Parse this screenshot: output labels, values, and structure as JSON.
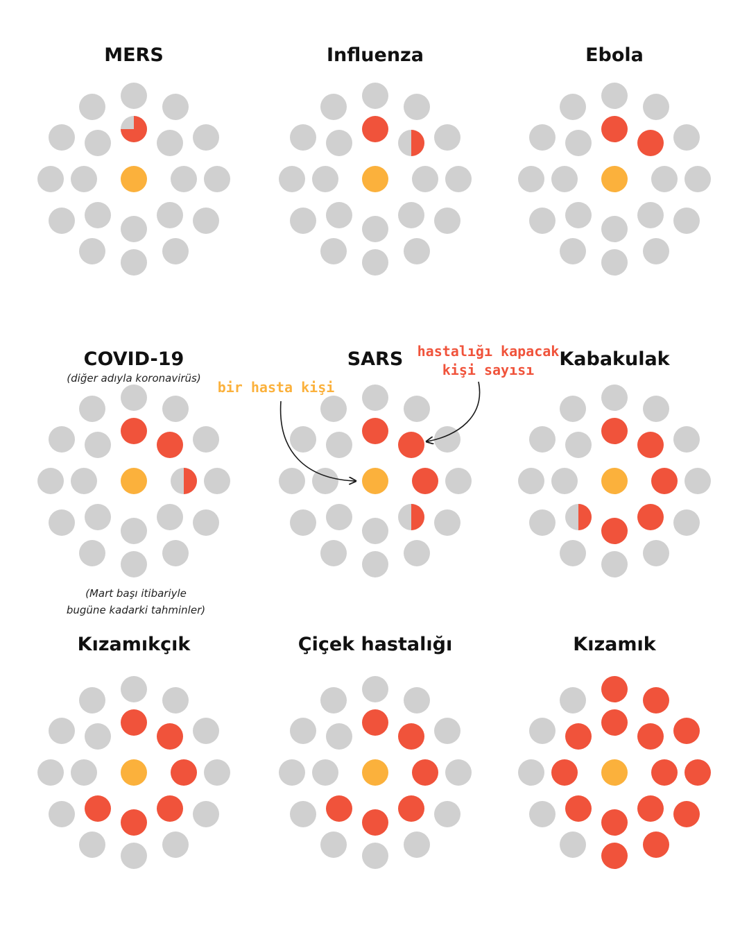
{
  "colors": {
    "grey": "#d0d0d0",
    "red": "#f0533b",
    "yellow": "#fbb13c",
    "label_yellow": "#fbb13c",
    "label_red": "#f0533b",
    "arrow": "#1a1a1a"
  },
  "panels": [
    {
      "title": "MERS",
      "red_count": 0.75
    },
    {
      "title": "Influenza",
      "red_count": 1.5
    },
    {
      "title": "Ebola",
      "red_count": 2
    },
    {
      "title": "COVID-19",
      "subtitle": "(diğer adıyla koronavirüs)",
      "red_count": 2.5,
      "note_lines": [
        "(Mart başı itibariyle",
        "bugüne kadarki tahminler)"
      ]
    },
    {
      "title": "SARS",
      "red_count": 3.5
    },
    {
      "title": "Kabakulak",
      "red_count": 5.5
    },
    {
      "title": "Kızamıkçık",
      "red_count": 6
    },
    {
      "title": "Çiçek hastalığı",
      "red_count": 6
    },
    {
      "title": "Kızamık",
      "red_count": 15
    }
  ],
  "annotations": {
    "sick_person": "bir hasta kişi",
    "will_catch": [
      "hastalığı kapacak",
      "kişi sayısı"
    ]
  }
}
